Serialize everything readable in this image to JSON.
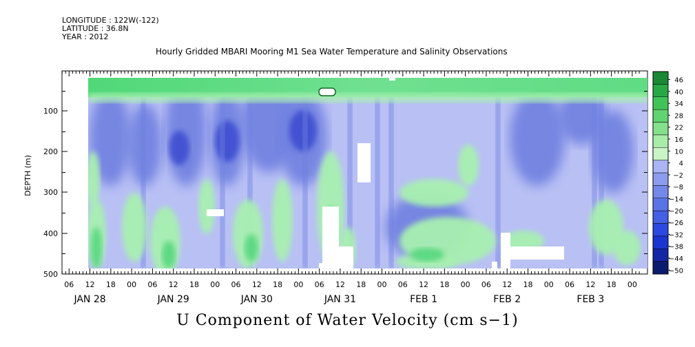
{
  "header": {
    "longitude": "LONGITUDE : 122W(-122)",
    "latitude": "LATITUDE : 36.8N",
    "year": "YEAR : 2012"
  },
  "chart_title": "Hourly Gridded MBARI Mooring M1 Sea Water Temperature and Salinity Observations",
  "bottom_title": "U Component of Water Velocity (cm s−1)",
  "colors": {
    "blue_dark": "#2030c8",
    "blue_mid": "#7080e0",
    "blue_light": "#b8c0f4",
    "green_light": "#a8f0b0",
    "green_mid": "#40d070",
    "green_dark": "#106828"
  },
  "chart_data": {
    "type": "heatmap",
    "xlabel": "",
    "ylabel": "DEPTH (m)",
    "ylim": [
      500,
      0
    ],
    "yticks": [
      100,
      200,
      300,
      400,
      500
    ],
    "x_hour_ticks": [
      "06",
      "12",
      "18",
      "00",
      "06",
      "12",
      "18",
      "00",
      "06",
      "12",
      "18",
      "00",
      "06",
      "12",
      "18",
      "00",
      "06",
      "12",
      "18",
      "00",
      "06",
      "12",
      "18",
      "00",
      "06",
      "12",
      "18",
      "00"
    ],
    "x_day_labels": [
      "JAN 28",
      "JAN 29",
      "JAN 30",
      "JAN 31",
      "FEB  1",
      "FEB  2",
      "FEB  3"
    ],
    "colorbar": {
      "levels": [
        -50,
        -44,
        -38,
        -32,
        -26,
        -20,
        -14,
        -8,
        -2,
        4,
        10,
        16,
        22,
        28,
        34,
        40,
        46
      ],
      "labels": [
        "46",
        "40",
        "34",
        "28",
        "22",
        "16",
        "10",
        "4",
        "−2",
        "−8",
        "−14",
        "−20",
        "−26",
        "−32",
        "−38",
        "−44",
        "−50"
      ]
    },
    "description_bands": [
      {
        "depth_from": 20,
        "depth_to": 60,
        "value": 8
      },
      {
        "depth_from": 60,
        "depth_to": 480,
        "value": -12
      }
    ]
  }
}
